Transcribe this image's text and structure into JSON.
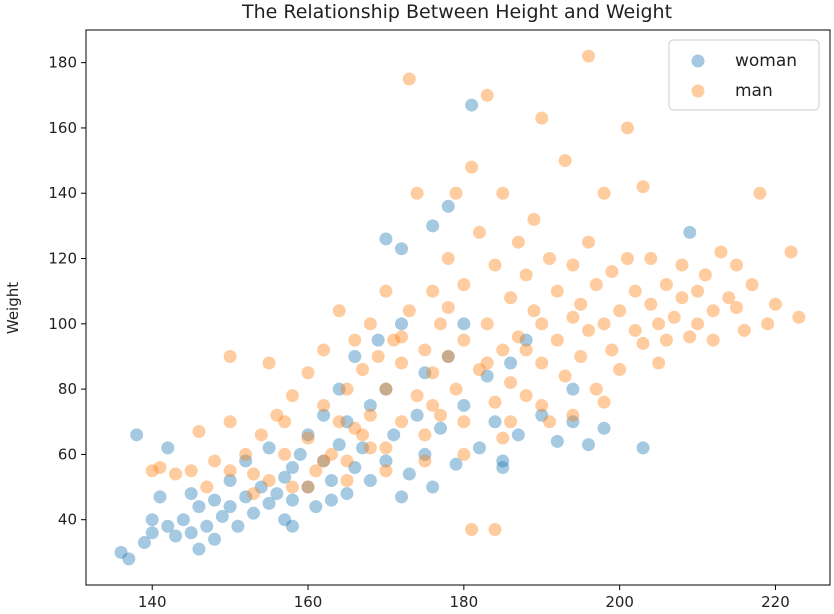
{
  "chart_data": {
    "type": "scatter",
    "title": "The Relationship Between Height and Weight",
    "xlabel": "",
    "ylabel": "Weight",
    "xlim": [
      131.5,
      227
    ],
    "ylim": [
      20,
      190
    ],
    "xticks": [
      140,
      160,
      180,
      200,
      220
    ],
    "yticks": [
      40,
      60,
      80,
      100,
      120,
      140,
      160,
      180
    ],
    "grid": false,
    "legend": "top-right",
    "marker_alpha": 0.4,
    "series": [
      {
        "name": "woman",
        "color": "#1f77b4",
        "points": [
          [
            136,
            30
          ],
          [
            137,
            28
          ],
          [
            138,
            66
          ],
          [
            139,
            33
          ],
          [
            140,
            36
          ],
          [
            140,
            40
          ],
          [
            141,
            47
          ],
          [
            142,
            62
          ],
          [
            142,
            38
          ],
          [
            143,
            35
          ],
          [
            144,
            40
          ],
          [
            145,
            48
          ],
          [
            145,
            36
          ],
          [
            146,
            44
          ],
          [
            147,
            38
          ],
          [
            148,
            46
          ],
          [
            148,
            34
          ],
          [
            149,
            41
          ],
          [
            150,
            52
          ],
          [
            150,
            44
          ],
          [
            151,
            38
          ],
          [
            152,
            47
          ],
          [
            152,
            58
          ],
          [
            153,
            42
          ],
          [
            154,
            50
          ],
          [
            155,
            45
          ],
          [
            155,
            62
          ],
          [
            156,
            48
          ],
          [
            157,
            53
          ],
          [
            157,
            40
          ],
          [
            158,
            56
          ],
          [
            158,
            46
          ],
          [
            159,
            60
          ],
          [
            160,
            50
          ],
          [
            160,
            66
          ],
          [
            161,
            44
          ],
          [
            162,
            58
          ],
          [
            162,
            72
          ],
          [
            163,
            52
          ],
          [
            164,
            63
          ],
          [
            164,
            80
          ],
          [
            165,
            48
          ],
          [
            165,
            70
          ],
          [
            166,
            56
          ],
          [
            166,
            90
          ],
          [
            167,
            62
          ],
          [
            168,
            75
          ],
          [
            168,
            52
          ],
          [
            169,
            95
          ],
          [
            170,
            58
          ],
          [
            170,
            80
          ],
          [
            170,
            126
          ],
          [
            171,
            66
          ],
          [
            172,
            100
          ],
          [
            172,
            123
          ],
          [
            173,
            54
          ],
          [
            174,
            72
          ],
          [
            175,
            85
          ],
          [
            175,
            60
          ],
          [
            176,
            130
          ],
          [
            176,
            50
          ],
          [
            177,
            68
          ],
          [
            178,
            136
          ],
          [
            178,
            90
          ],
          [
            179,
            57
          ],
          [
            180,
            75
          ],
          [
            180,
            100
          ],
          [
            181,
            167
          ],
          [
            182,
            62
          ],
          [
            183,
            84
          ],
          [
            184,
            70
          ],
          [
            185,
            58
          ],
          [
            186,
            88
          ],
          [
            187,
            66
          ],
          [
            188,
            95
          ],
          [
            190,
            72
          ],
          [
            192,
            64
          ],
          [
            194,
            80
          ],
          [
            196,
            63
          ],
          [
            198,
            68
          ],
          [
            203,
            62
          ],
          [
            209,
            128
          ],
          [
            158,
            38
          ],
          [
            146,
            31
          ],
          [
            163,
            46
          ],
          [
            172,
            47
          ],
          [
            185,
            56
          ],
          [
            194,
            70
          ]
        ]
      },
      {
        "name": "man",
        "color": "#ff7f0e",
        "points": [
          [
            140,
            55
          ],
          [
            141,
            56
          ],
          [
            143,
            54
          ],
          [
            145,
            55
          ],
          [
            146,
            67
          ],
          [
            147,
            50
          ],
          [
            148,
            58
          ],
          [
            150,
            90
          ],
          [
            150,
            70
          ],
          [
            150,
            55
          ],
          [
            152,
            60
          ],
          [
            153,
            48
          ],
          [
            154,
            66
          ],
          [
            155,
            88
          ],
          [
            155,
            52
          ],
          [
            156,
            72
          ],
          [
            157,
            60
          ],
          [
            158,
            78
          ],
          [
            158,
            50
          ],
          [
            160,
            65
          ],
          [
            160,
            85
          ],
          [
            161,
            55
          ],
          [
            162,
            75
          ],
          [
            162,
            92
          ],
          [
            163,
            60
          ],
          [
            164,
            70
          ],
          [
            164,
            104
          ],
          [
            165,
            58
          ],
          [
            165,
            80
          ],
          [
            166,
            95
          ],
          [
            167,
            66
          ],
          [
            167,
            86
          ],
          [
            168,
            72
          ],
          [
            168,
            100
          ],
          [
            169,
            90
          ],
          [
            170,
            62
          ],
          [
            170,
            80
          ],
          [
            170,
            110
          ],
          [
            171,
            95
          ],
          [
            172,
            70
          ],
          [
            172,
            88
          ],
          [
            173,
            175
          ],
          [
            173,
            104
          ],
          [
            174,
            78
          ],
          [
            174,
            140
          ],
          [
            175,
            92
          ],
          [
            175,
            66
          ],
          [
            176,
            85
          ],
          [
            176,
            110
          ],
          [
            177,
            100
          ],
          [
            177,
            72
          ],
          [
            178,
            120
          ],
          [
            178,
            90
          ],
          [
            179,
            80
          ],
          [
            179,
            140
          ],
          [
            180,
            70
          ],
          [
            180,
            95
          ],
          [
            180,
            112
          ],
          [
            181,
            148
          ],
          [
            181,
            37
          ],
          [
            182,
            86
          ],
          [
            182,
            128
          ],
          [
            183,
            170
          ],
          [
            183,
            100
          ],
          [
            184,
            37
          ],
          [
            184,
            76
          ],
          [
            184,
            118
          ],
          [
            185,
            92
          ],
          [
            185,
            140
          ],
          [
            186,
            108
          ],
          [
            186,
            82
          ],
          [
            187,
            125
          ],
          [
            187,
            96
          ],
          [
            188,
            78
          ],
          [
            188,
            115
          ],
          [
            189,
            104
          ],
          [
            189,
            132
          ],
          [
            190,
            163
          ],
          [
            190,
            88
          ],
          [
            190,
            100
          ],
          [
            191,
            120
          ],
          [
            191,
            70
          ],
          [
            192,
            95
          ],
          [
            192,
            110
          ],
          [
            193,
            150
          ],
          [
            193,
            84
          ],
          [
            194,
            102
          ],
          [
            194,
            118
          ],
          [
            195,
            90
          ],
          [
            195,
            106
          ],
          [
            196,
            182
          ],
          [
            196,
            98
          ],
          [
            196,
            125
          ],
          [
            197,
            112
          ],
          [
            197,
            80
          ],
          [
            198,
            100
          ],
          [
            198,
            140
          ],
          [
            199,
            92
          ],
          [
            199,
            116
          ],
          [
            200,
            104
          ],
          [
            200,
            86
          ],
          [
            201,
            160
          ],
          [
            201,
            120
          ],
          [
            202,
            98
          ],
          [
            202,
            110
          ],
          [
            203,
            142
          ],
          [
            203,
            94
          ],
          [
            204,
            106
          ],
          [
            204,
            120
          ],
          [
            205,
            100
          ],
          [
            205,
            88
          ],
          [
            206,
            112
          ],
          [
            206,
            95
          ],
          [
            207,
            102
          ],
          [
            208,
            118
          ],
          [
            208,
            108
          ],
          [
            209,
            96
          ],
          [
            210,
            110
          ],
          [
            210,
            100
          ],
          [
            211,
            115
          ],
          [
            212,
            104
          ],
          [
            212,
            95
          ],
          [
            213,
            122
          ],
          [
            214,
            108
          ],
          [
            215,
            105
          ],
          [
            215,
            118
          ],
          [
            216,
            98
          ],
          [
            217,
            112
          ],
          [
            218,
            140
          ],
          [
            219,
            100
          ],
          [
            220,
            106
          ],
          [
            222,
            122
          ],
          [
            223,
            102
          ],
          [
            160,
            50
          ],
          [
            165,
            52
          ],
          [
            170,
            55
          ],
          [
            175,
            58
          ],
          [
            180,
            60
          ],
          [
            185,
            65
          ],
          [
            190,
            75
          ],
          [
            168,
            62
          ],
          [
            176,
            75
          ],
          [
            186,
            70
          ],
          [
            178,
            105
          ],
          [
            183,
            88
          ],
          [
            188,
            92
          ],
          [
            172,
            96
          ],
          [
            166,
            68
          ],
          [
            162,
            58
          ],
          [
            157,
            70
          ],
          [
            153,
            54
          ],
          [
            198,
            76
          ],
          [
            194,
            72
          ]
        ]
      }
    ]
  }
}
